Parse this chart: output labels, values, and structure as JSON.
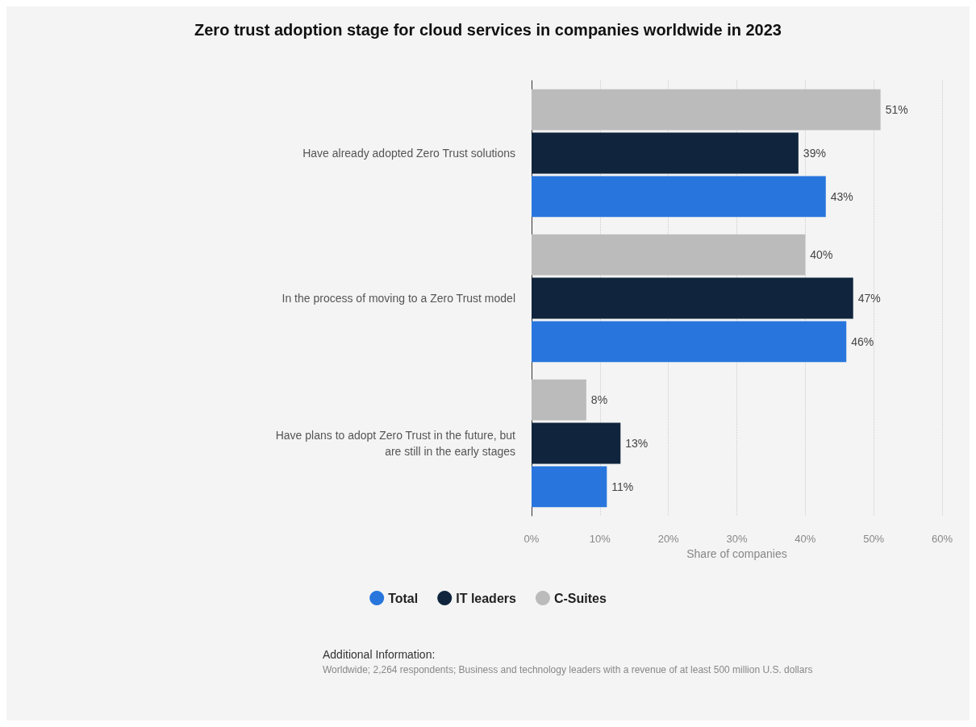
{
  "chart_data": {
    "type": "bar",
    "orientation": "horizontal",
    "title": "Zero trust adoption stage for cloud services in companies worldwide in 2023",
    "xlabel": "Share of companies",
    "categories": [
      "Have already adopted Zero Trust solutions",
      "In the process of moving to a Zero Trust model",
      "Have plans to adopt Zero Trust in the future, but\nare still in the early stages"
    ],
    "series": [
      {
        "name": "Total",
        "color": "#2876dd",
        "values": [
          43,
          46,
          11
        ],
        "value_labels": [
          "43%",
          "46%",
          "11%"
        ]
      },
      {
        "name": "IT leaders",
        "color": "#10253d",
        "values": [
          39,
          47,
          13
        ],
        "value_labels": [
          "39%",
          "47%",
          "13%"
        ]
      },
      {
        "name": "C-Suites",
        "color": "#bbbbbb",
        "values": [
          51,
          40,
          8
        ],
        "value_labels": [
          "51%",
          "40%",
          "8%"
        ]
      }
    ],
    "xlim": [
      0,
      60
    ],
    "xticks": [
      {
        "value": 0,
        "label": "0%"
      },
      {
        "value": 10,
        "label": "10%"
      },
      {
        "value": 20,
        "label": "20%"
      },
      {
        "value": 30,
        "label": "30%"
      },
      {
        "value": 40,
        "label": "40%"
      },
      {
        "value": 50,
        "label": "50%"
      },
      {
        "value": 60,
        "label": "60%"
      }
    ],
    "grid": "x",
    "legend": "bottom",
    "annotations": [
      "Additional Information:",
      "Worldwide; 2,264 respondents; Business and technology leaders with a revenue of at least 500 million U.S. dollars"
    ]
  }
}
